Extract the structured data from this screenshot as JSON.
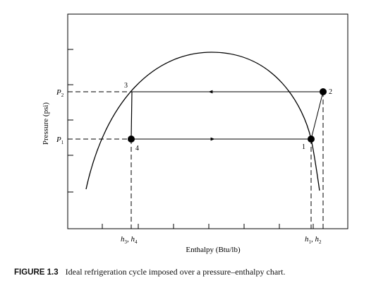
{
  "diagram": {
    "y_axis_label": "Pressure (psi)",
    "x_axis_label": "Enthalpy (Btu/lb)",
    "pressure_labels": {
      "high": "P",
      "high_sub": "2",
      "low": "P",
      "low_sub": "1"
    },
    "enthalpy_labels": {
      "left": {
        "a": "h",
        "a_sub": "3",
        "sep": ", ",
        "b": "h",
        "b_sub": "4"
      },
      "right": {
        "a": "h",
        "a_sub": "1",
        "sep": ", ",
        "b": "h",
        "b_sub": "2"
      }
    },
    "state_points": [
      {
        "label": "1"
      },
      {
        "label": "2"
      },
      {
        "label": "3"
      },
      {
        "label": "4"
      }
    ]
  },
  "caption": {
    "figure_number": "FIGURE 1.3",
    "text": "Ideal refrigeration cycle imposed over a pressure–enthalpy chart."
  }
}
